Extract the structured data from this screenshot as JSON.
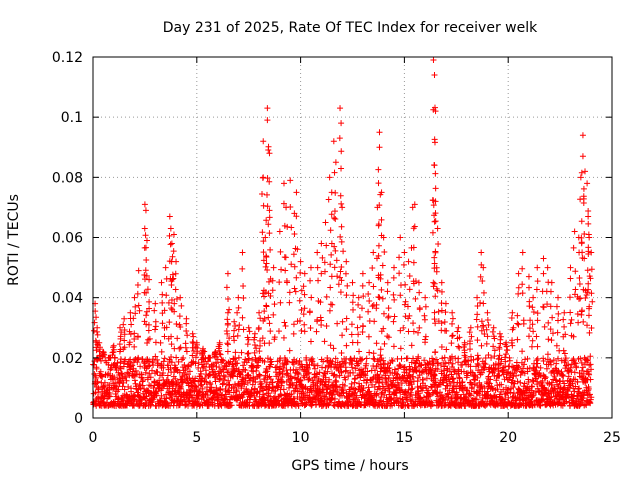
{
  "chart_data": {
    "type": "scatter",
    "title": "Day 231 of 2025, Rate Of TEC Index for receiver welk",
    "xlabel": "GPS time / hours",
    "ylabel": "ROTI / TECUs",
    "xlim": [
      0,
      25
    ],
    "ylim": [
      0,
      0.12
    ],
    "x_ticks": [
      0,
      5,
      10,
      15,
      20,
      25
    ],
    "x_tick_labels": [
      "0",
      "5",
      "10",
      "15",
      "20",
      "25"
    ],
    "y_ticks": [
      0,
      0.02,
      0.04,
      0.06,
      0.08,
      0.1,
      0.12
    ],
    "y_tick_labels": [
      "0",
      "0.02",
      "0.04",
      "0.06",
      "0.08",
      "0.1",
      "0.12"
    ],
    "grid": true,
    "legend": "none",
    "marker": "+",
    "color": "#ff0000",
    "series": [
      {
        "points": [
          [
            0.1,
            0.038
          ],
          [
            0.2,
            0.03
          ],
          [
            0.3,
            0.025
          ],
          [
            0.5,
            0.022
          ],
          [
            0.8,
            0.02
          ],
          [
            1.0,
            0.024
          ],
          [
            1.3,
            0.03
          ],
          [
            1.5,
            0.033
          ],
          [
            1.8,
            0.035
          ],
          [
            2.0,
            0.04
          ],
          [
            2.2,
            0.049
          ],
          [
            2.5,
            0.071
          ],
          [
            2.55,
            0.069
          ],
          [
            2.6,
            0.059
          ],
          [
            2.7,
            0.046
          ],
          [
            3.0,
            0.038
          ],
          [
            3.3,
            0.045
          ],
          [
            3.5,
            0.05
          ],
          [
            3.7,
            0.067
          ],
          [
            3.75,
            0.063
          ],
          [
            3.8,
            0.058
          ],
          [
            3.9,
            0.061
          ],
          [
            4.0,
            0.052
          ],
          [
            4.2,
            0.04
          ],
          [
            4.5,
            0.033
          ],
          [
            4.8,
            0.028
          ],
          [
            5.0,
            0.025
          ],
          [
            5.3,
            0.023
          ],
          [
            5.6,
            0.02
          ],
          [
            5.9,
            0.022
          ],
          [
            6.1,
            0.025
          ],
          [
            6.5,
            0.035
          ],
          [
            6.5,
            0.048
          ],
          [
            6.8,
            0.032
          ],
          [
            7.0,
            0.04
          ],
          [
            7.2,
            0.055
          ],
          [
            7.5,
            0.03
          ],
          [
            7.8,
            0.028
          ],
          [
            8.0,
            0.035
          ],
          [
            8.2,
            0.092
          ],
          [
            8.2,
            0.08
          ],
          [
            8.4,
            0.103
          ],
          [
            8.4,
            0.099
          ],
          [
            8.5,
            0.088
          ],
          [
            8.5,
            0.069
          ],
          [
            8.3,
            0.06
          ],
          [
            8.7,
            0.05
          ],
          [
            9.0,
            0.062
          ],
          [
            9.2,
            0.078
          ],
          [
            9.3,
            0.07
          ],
          [
            9.5,
            0.079
          ],
          [
            9.7,
            0.068
          ],
          [
            9.8,
            0.075
          ],
          [
            10.0,
            0.052
          ],
          [
            10.2,
            0.048
          ],
          [
            10.5,
            0.05
          ],
          [
            10.8,
            0.055
          ],
          [
            11.0,
            0.058
          ],
          [
            11.2,
            0.065
          ],
          [
            11.4,
            0.08
          ],
          [
            11.5,
            0.075
          ],
          [
            11.6,
            0.092
          ],
          [
            11.7,
            0.085
          ],
          [
            11.9,
            0.103
          ],
          [
            11.95,
            0.098
          ],
          [
            12.0,
            0.07
          ],
          [
            12.2,
            0.052
          ],
          [
            12.5,
            0.045
          ],
          [
            12.8,
            0.04
          ],
          [
            13.0,
            0.048
          ],
          [
            13.3,
            0.045
          ],
          [
            13.5,
            0.055
          ],
          [
            13.7,
            0.07
          ],
          [
            13.8,
            0.095
          ],
          [
            13.8,
            0.09
          ],
          [
            13.9,
            0.075
          ],
          [
            14.0,
            0.06
          ],
          [
            14.2,
            0.045
          ],
          [
            14.5,
            0.05
          ],
          [
            14.8,
            0.06
          ],
          [
            15.0,
            0.055
          ],
          [
            15.2,
            0.052
          ],
          [
            15.4,
            0.07
          ],
          [
            15.5,
            0.071
          ],
          [
            15.7,
            0.045
          ],
          [
            16.0,
            0.04
          ],
          [
            16.4,
            0.119
          ],
          [
            16.45,
            0.114
          ],
          [
            16.5,
            0.102
          ],
          [
            16.45,
            0.084
          ],
          [
            16.5,
            0.072
          ],
          [
            16.6,
            0.063
          ],
          [
            16.8,
            0.045
          ],
          [
            17.0,
            0.038
          ],
          [
            17.3,
            0.035
          ],
          [
            17.6,
            0.03
          ],
          [
            17.9,
            0.025
          ],
          [
            18.2,
            0.03
          ],
          [
            18.5,
            0.04
          ],
          [
            18.7,
            0.055
          ],
          [
            18.8,
            0.05
          ],
          [
            19.0,
            0.035
          ],
          [
            19.3,
            0.03
          ],
          [
            19.6,
            0.028
          ],
          [
            19.9,
            0.025
          ],
          [
            20.2,
            0.035
          ],
          [
            20.5,
            0.048
          ],
          [
            20.7,
            0.055
          ],
          [
            21.0,
            0.047
          ],
          [
            21.2,
            0.04
          ],
          [
            21.4,
            0.05
          ],
          [
            21.7,
            0.053
          ],
          [
            21.9,
            0.05
          ],
          [
            22.1,
            0.045
          ],
          [
            22.4,
            0.04
          ],
          [
            22.7,
            0.035
          ],
          [
            23.0,
            0.05
          ],
          [
            23.2,
            0.062
          ],
          [
            23.4,
            0.06
          ],
          [
            23.5,
            0.08
          ],
          [
            23.6,
            0.094
          ],
          [
            23.6,
            0.087
          ],
          [
            23.7,
            0.082
          ],
          [
            23.8,
            0.078
          ],
          [
            23.85,
            0.067
          ],
          [
            23.9,
            0.06
          ],
          [
            24.0,
            0.055
          ]
        ]
      }
    ],
    "baseline_density": {
      "x_range": [
        0,
        24
      ],
      "typical_range": [
        0.004,
        0.02
      ],
      "points_per_hour": 120
    }
  }
}
